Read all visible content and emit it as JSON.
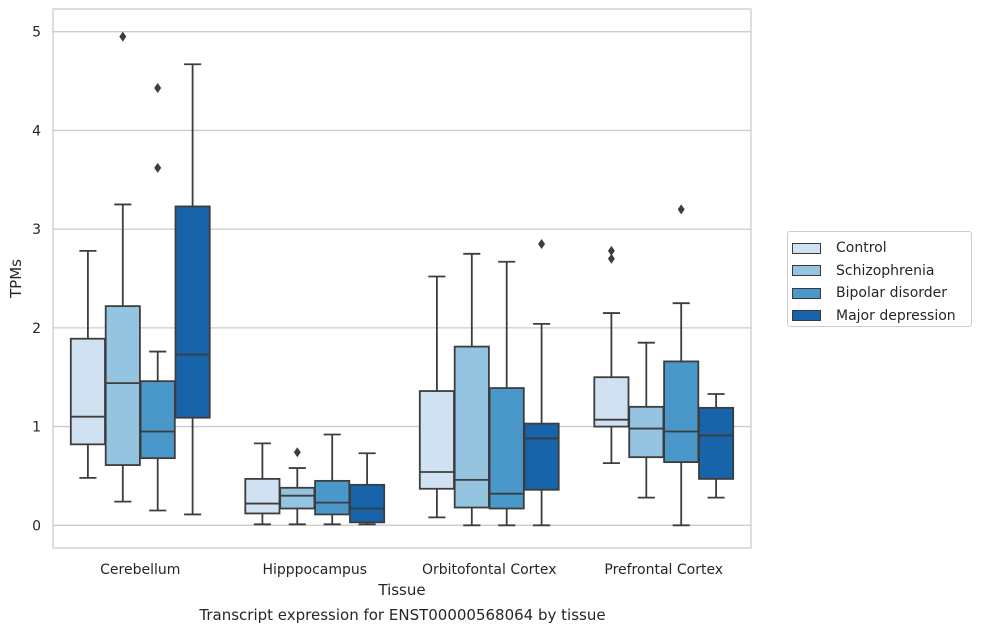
{
  "caption": "Transcript expression for ENST00000568064 by tissue",
  "legend": {
    "items": [
      {
        "label": "Control",
        "color": "#d0e1f2"
      },
      {
        "label": "Schizophrenia",
        "color": "#94c4df"
      },
      {
        "label": "Bipolar disorder",
        "color": "#4a98c9"
      },
      {
        "label": "Major depression",
        "color": "#1764ab"
      }
    ]
  },
  "chart_data": {
    "type": "box",
    "xlabel": "Tissue",
    "ylabel": "TPMs",
    "categories": [
      "Cerebellum",
      "Hipppocampus",
      "Orbitofontal Cortex",
      "Prefrontal Cortex"
    ],
    "ylim": [
      -0.23,
      5.23
    ],
    "yticks": [
      0,
      1,
      2,
      3,
      4,
      5
    ],
    "grid": true,
    "legend_position": "right",
    "series": [
      {
        "name": "Control",
        "color": "#d0e1f2",
        "boxes": [
          {
            "min": 0.48,
            "q1": 0.82,
            "median": 1.1,
            "q3": 1.89,
            "max": 2.78,
            "outliers": []
          },
          {
            "min": 0.01,
            "q1": 0.12,
            "median": 0.22,
            "q3": 0.47,
            "max": 0.83,
            "outliers": []
          },
          {
            "min": 0.08,
            "q1": 0.37,
            "median": 0.54,
            "q3": 1.36,
            "max": 2.52,
            "outliers": []
          },
          {
            "min": 0.63,
            "q1": 1.0,
            "median": 1.07,
            "q3": 1.5,
            "max": 2.15,
            "outliers": [
              2.7,
              2.78
            ]
          }
        ]
      },
      {
        "name": "Schizophrenia",
        "color": "#94c4df",
        "boxes": [
          {
            "min": 0.24,
            "q1": 0.61,
            "median": 1.44,
            "q3": 2.22,
            "max": 3.25,
            "outliers": [
              4.95
            ]
          },
          {
            "min": 0.01,
            "q1": 0.17,
            "median": 0.3,
            "q3": 0.38,
            "max": 0.58,
            "outliers": [
              0.74
            ]
          },
          {
            "min": 0.0,
            "q1": 0.18,
            "median": 0.46,
            "q3": 1.81,
            "max": 2.75,
            "outliers": []
          },
          {
            "min": 0.28,
            "q1": 0.69,
            "median": 0.98,
            "q3": 1.2,
            "max": 1.85,
            "outliers": []
          }
        ]
      },
      {
        "name": "Bipolar disorder",
        "color": "#4a98c9",
        "boxes": [
          {
            "min": 0.15,
            "q1": 0.68,
            "median": 0.95,
            "q3": 1.46,
            "max": 1.76,
            "outliers": [
              3.62,
              4.43
            ]
          },
          {
            "min": 0.01,
            "q1": 0.11,
            "median": 0.23,
            "q3": 0.45,
            "max": 0.92,
            "outliers": []
          },
          {
            "min": 0.0,
            "q1": 0.17,
            "median": 0.32,
            "q3": 1.39,
            "max": 2.67,
            "outliers": []
          },
          {
            "min": 0.0,
            "q1": 0.64,
            "median": 0.95,
            "q3": 1.66,
            "max": 2.25,
            "outliers": [
              3.2
            ]
          }
        ]
      },
      {
        "name": "Major depression",
        "color": "#1764ab",
        "boxes": [
          {
            "min": 0.11,
            "q1": 1.09,
            "median": 1.73,
            "q3": 3.23,
            "max": 4.67,
            "outliers": []
          },
          {
            "min": 0.01,
            "q1": 0.03,
            "median": 0.17,
            "q3": 0.41,
            "max": 0.73,
            "outliers": []
          },
          {
            "min": 0.0,
            "q1": 0.36,
            "median": 0.88,
            "q3": 1.03,
            "max": 2.04,
            "outliers": [
              2.85
            ]
          },
          {
            "min": 0.28,
            "q1": 0.47,
            "median": 0.91,
            "q3": 1.19,
            "max": 1.33,
            "outliers": []
          }
        ]
      }
    ]
  }
}
